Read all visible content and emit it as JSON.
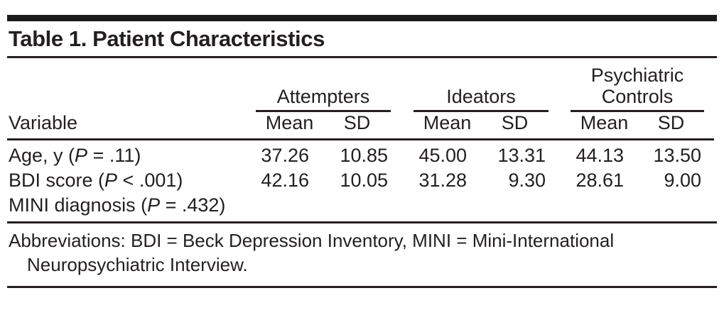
{
  "title": "Table 1. Patient Characteristics",
  "table": {
    "variable_header": "Variable",
    "groups": [
      {
        "label": "Attempters"
      },
      {
        "label": "Ideators"
      },
      {
        "label": "Psychiatric Controls"
      }
    ],
    "col_headers": {
      "mean": "Mean",
      "sd": "SD"
    },
    "rows": [
      {
        "label_pre": "Age, y (",
        "label_p": "P",
        "label_post": " = .11)",
        "values": [
          "37.26",
          "10.85",
          "45.00",
          "13.31",
          "44.13",
          "13.50"
        ]
      },
      {
        "label_pre": "BDI score (",
        "label_p": "P",
        "label_post": " < .001)",
        "values": [
          "42.16",
          "10.05",
          "31.28",
          "9.30",
          "28.61",
          "9.00"
        ]
      },
      {
        "label_pre": "MINI diagnosis (",
        "label_p": "P",
        "label_post": " = .432)",
        "values": [
          "",
          "",
          "",
          "",
          "",
          ""
        ]
      }
    ]
  },
  "footnote": {
    "lines": [
      "Abbreviations: BDI = Beck Depression Inventory, MINI = Mini-International",
      "Neuropsychiatric Interview."
    ]
  },
  "colors": {
    "text": "#231f20",
    "rule": "#231f20",
    "bar": "#1b1b1b",
    "background": "#ffffff"
  }
}
